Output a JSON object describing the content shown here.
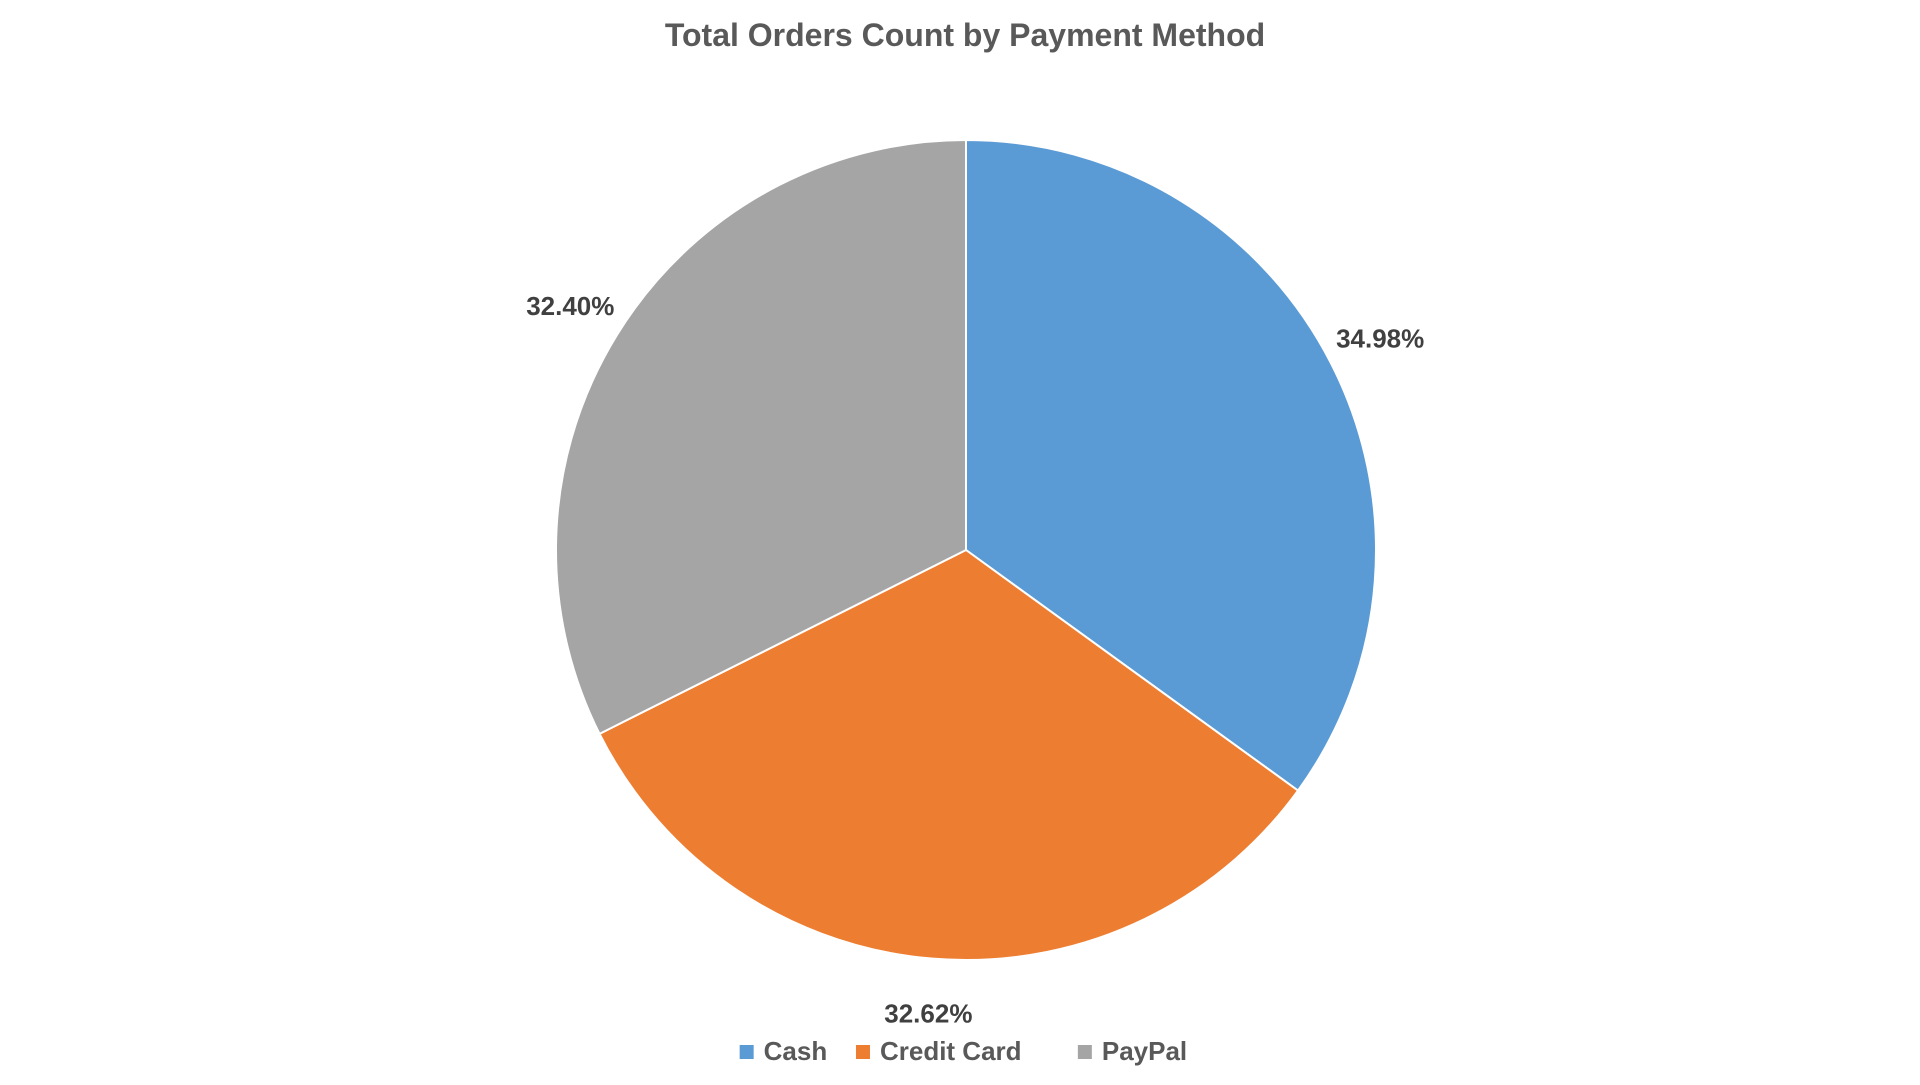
{
  "chart_data": {
    "type": "pie",
    "title": "Total Orders Count by Payment Method",
    "categories": [
      "Cash",
      "Credit Card",
      "PayPal"
    ],
    "values": [
      34.98,
      32.62,
      32.4
    ],
    "data_labels": [
      "34.98%",
      "32.62%",
      "32.40%"
    ],
    "colors": [
      "#5B9BD5",
      "#ED7D31",
      "#A5A5A5"
    ],
    "start_angle_deg": 0,
    "direction": "clockwise",
    "legend": {
      "placement": "bottom",
      "entries": [
        "Cash",
        "Credit Card",
        "PayPal"
      ]
    }
  }
}
